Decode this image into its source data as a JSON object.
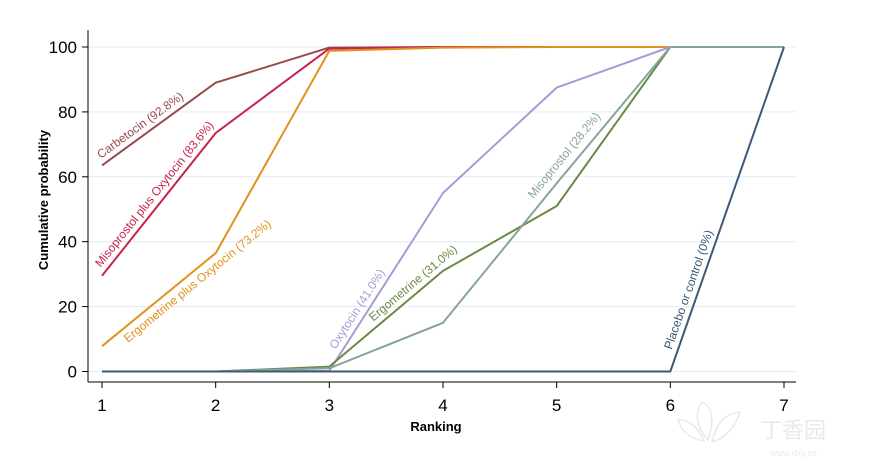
{
  "chart_data": {
    "type": "line",
    "title": "",
    "xlabel": "Ranking",
    "ylabel": "Cumulative probability",
    "x": [
      1,
      2,
      3,
      4,
      5,
      6,
      7
    ],
    "xlim": [
      1,
      7
    ],
    "ylim": [
      0,
      100
    ],
    "xticks": [
      "1",
      "2",
      "3",
      "4",
      "5",
      "6",
      "7"
    ],
    "yticks": [
      "0",
      "20",
      "40",
      "60",
      "80",
      "100"
    ],
    "grid": true,
    "series": [
      {
        "name": "Carbetocin (92.8%)",
        "color": "#9a4a4a",
        "values": [
          63.5,
          89,
          99.8,
          100,
          100,
          100,
          100
        ]
      },
      {
        "name": "Misoprostol plus Oxytocin (83.6%)",
        "color": "#c8234b",
        "values": [
          29.5,
          73.5,
          99.5,
          100,
          100,
          100,
          100
        ]
      },
      {
        "name": "Ergometrine plus Oxytocin (73.2%)",
        "color": "#e0921c",
        "values": [
          7.8,
          36.5,
          98.8,
          99.8,
          100,
          100,
          100
        ]
      },
      {
        "name": "Oxytocin (41.0%)",
        "color": "#a89ad6",
        "values": [
          0,
          0,
          0.2,
          55,
          87.5,
          100,
          100
        ]
      },
      {
        "name": "Ergometrine (31.0%)",
        "color": "#6b8a48",
        "values": [
          0,
          0,
          1.5,
          31,
          51,
          100,
          100
        ]
      },
      {
        "name": "Misoprostol (28.2%)",
        "color": "#86a59a",
        "values": [
          0,
          0,
          1,
          15,
          58,
          100,
          100
        ]
      },
      {
        "name": "Placebo or control (0%)",
        "color": "#3d5a7a",
        "values": [
          0,
          0,
          0,
          0,
          0,
          0,
          100
        ]
      }
    ]
  },
  "watermark": {
    "brand": "丁香园",
    "url": "www.dxy.cn"
  }
}
